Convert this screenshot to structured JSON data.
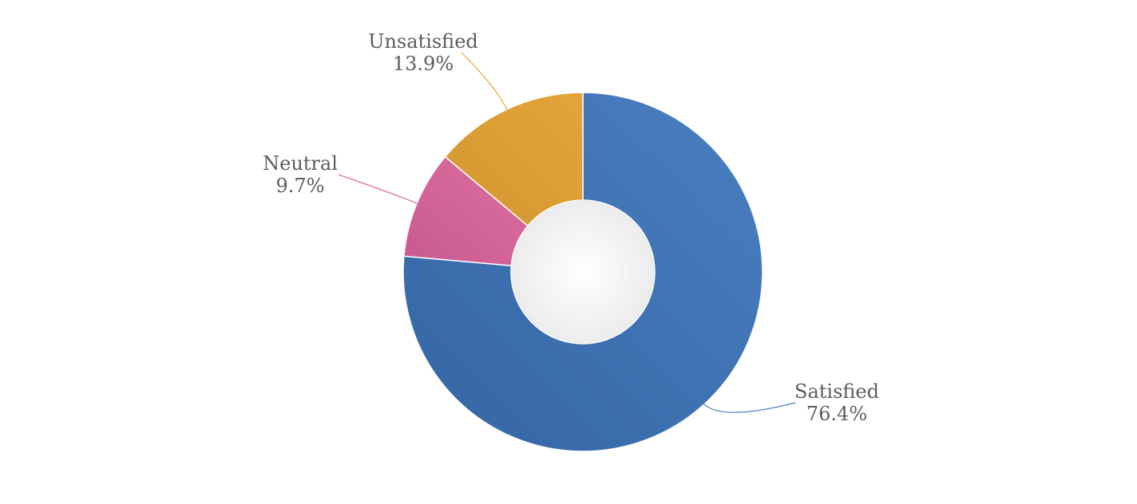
{
  "chart_data": {
    "type": "pie",
    "variant": "donut",
    "slices": [
      {
        "label": "Satisfied",
        "value": 76.4,
        "value_label": "76.4%",
        "color": "#3465a4",
        "color_light": "#4a7fc0"
      },
      {
        "label": "Neutral",
        "value": 9.7,
        "value_label": "9.7%",
        "color": "#c85a8f",
        "color_light": "#dc6ea2"
      },
      {
        "label": "Unsatisfied",
        "value": 13.9,
        "value_label": "13.9%",
        "color": "#d3962f",
        "color_light": "#e3a43a"
      }
    ],
    "legend": "none",
    "start_angle_deg": 0,
    "direction": "clockwise",
    "center_color": "#f2f2f2"
  }
}
